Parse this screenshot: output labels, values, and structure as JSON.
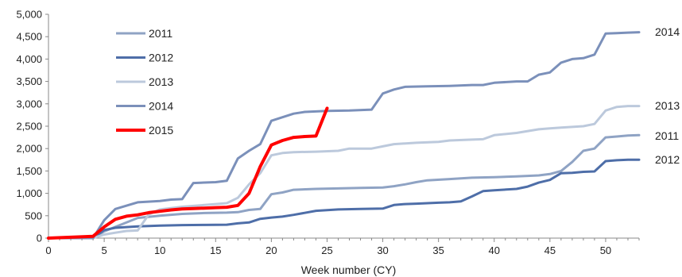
{
  "chart_data": {
    "type": "line",
    "xlabel": "Week number (CY)",
    "ylabel": "",
    "xlim": [
      0,
      53
    ],
    "ylim": [
      0,
      5000
    ],
    "x_ticks": [
      0,
      5,
      10,
      15,
      20,
      25,
      30,
      35,
      40,
      45,
      50
    ],
    "y_ticks": [
      0,
      500,
      1000,
      1500,
      2000,
      2500,
      3000,
      3500,
      4000,
      4500,
      5000
    ],
    "y_tick_labels": [
      "0",
      "500",
      "1,000",
      "1,500",
      "2,000",
      "2,500",
      "3,000",
      "3,500",
      "4,000",
      "4,500",
      "5,000"
    ],
    "grid": false,
    "legend_position": "top-left",
    "series": [
      {
        "name": "2011",
        "color": "#8FA3C4",
        "end_label": "2011",
        "x": [
          0,
          4,
          5,
          6,
          8,
          10,
          12,
          14,
          16,
          17,
          18,
          19,
          20,
          21,
          22,
          24,
          26,
          28,
          30,
          31,
          32,
          33,
          34,
          36,
          38,
          40,
          42,
          44,
          45,
          46,
          47,
          48,
          49,
          50,
          51,
          52,
          53
        ],
        "y": [
          0,
          0,
          150,
          250,
          450,
          500,
          540,
          560,
          570,
          580,
          630,
          650,
          980,
          1020,
          1080,
          1100,
          1110,
          1120,
          1130,
          1160,
          1200,
          1250,
          1290,
          1320,
          1350,
          1360,
          1380,
          1400,
          1430,
          1500,
          1700,
          1950,
          2000,
          2250,
          2270,
          2290,
          2300
        ]
      },
      {
        "name": "2012",
        "color": "#4E6EA8",
        "end_label": "2012",
        "x": [
          0,
          4,
          5,
          6,
          8,
          10,
          12,
          14,
          16,
          17,
          18,
          19,
          20,
          21,
          22,
          24,
          26,
          28,
          30,
          31,
          32,
          33,
          35,
          36,
          37,
          38,
          39,
          40,
          42,
          43,
          44,
          45,
          46,
          47,
          48,
          49,
          50,
          51,
          52,
          53
        ],
        "y": [
          0,
          0,
          180,
          230,
          260,
          280,
          290,
          295,
          300,
          330,
          350,
          430,
          460,
          480,
          520,
          610,
          640,
          650,
          660,
          740,
          760,
          770,
          790,
          800,
          820,
          930,
          1050,
          1070,
          1100,
          1150,
          1240,
          1300,
          1450,
          1460,
          1480,
          1490,
          1720,
          1740,
          1750,
          1750
        ]
      },
      {
        "name": "2013",
        "color": "#BCC9DC",
        "end_label": "2013",
        "x": [
          0,
          4,
          5,
          6,
          7,
          8,
          9,
          10,
          12,
          14,
          16,
          17,
          18,
          19,
          20,
          21,
          22,
          24,
          26,
          27,
          29,
          30,
          31,
          33,
          35,
          36,
          38,
          39,
          40,
          42,
          44,
          45,
          46,
          48,
          49,
          50,
          51,
          52,
          53
        ],
        "y": [
          0,
          0,
          80,
          120,
          160,
          170,
          530,
          640,
          700,
          740,
          780,
          900,
          1200,
          1450,
          1850,
          1900,
          1920,
          1930,
          1950,
          2000,
          2000,
          2050,
          2100,
          2130,
          2150,
          2180,
          2200,
          2210,
          2300,
          2350,
          2430,
          2450,
          2470,
          2500,
          2550,
          2850,
          2930,
          2950,
          2950
        ]
      },
      {
        "name": "2014",
        "color": "#7B90BA",
        "end_label": "2014",
        "x": [
          0,
          4,
          5,
          6,
          8,
          10,
          11,
          12,
          13,
          15,
          16,
          17,
          18,
          19,
          20,
          21,
          22,
          23,
          25,
          27,
          29,
          30,
          31,
          32,
          34,
          36,
          38,
          39,
          40,
          42,
          43,
          44,
          45,
          46,
          47,
          48,
          49,
          50,
          51,
          52,
          53
        ],
        "y": [
          0,
          0,
          400,
          650,
          800,
          830,
          860,
          870,
          1230,
          1250,
          1280,
          1780,
          1950,
          2100,
          2620,
          2700,
          2780,
          2820,
          2840,
          2850,
          2870,
          3230,
          3320,
          3380,
          3390,
          3400,
          3420,
          3420,
          3470,
          3500,
          3500,
          3650,
          3700,
          3920,
          4000,
          4020,
          4100,
          4570,
          4580,
          4590,
          4600
        ]
      },
      {
        "name": "2015",
        "color": "#FF0000",
        "end_label": "",
        "x": [
          0,
          4,
          5,
          6,
          7,
          8,
          9,
          10,
          11,
          12,
          13,
          14,
          15,
          16,
          17,
          18,
          19,
          20,
          21,
          22,
          23,
          24,
          25
        ],
        "y": [
          0,
          40,
          250,
          420,
          490,
          520,
          570,
          600,
          630,
          650,
          660,
          670,
          680,
          690,
          730,
          1000,
          1600,
          2080,
          2180,
          2250,
          2270,
          2280,
          2900
        ]
      }
    ]
  }
}
